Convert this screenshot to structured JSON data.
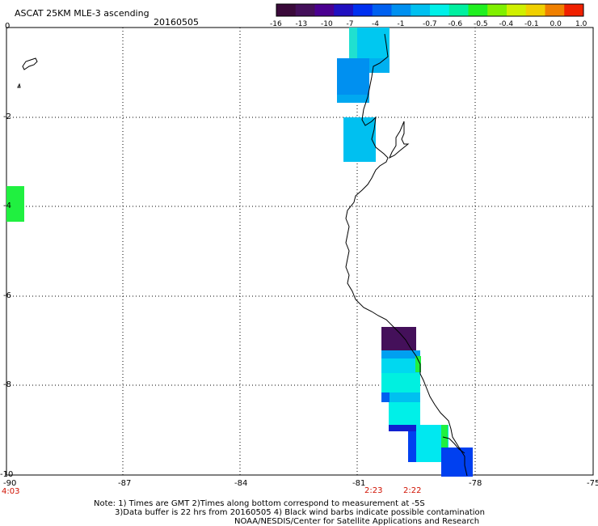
{
  "header": {
    "title": "ASCAT 25KM MLE-3 ascending",
    "date": "20160505"
  },
  "colorbar": {
    "colors": [
      "#3a0a3a",
      "#44105a",
      "#4a0090",
      "#2010c0",
      "#0030f0",
      "#0060f0",
      "#0090f0",
      "#00c0f0",
      "#00f0e8",
      "#00f0a0",
      "#20f020",
      "#80f000",
      "#d0f000",
      "#f0d000",
      "#f08000",
      "#f02000"
    ],
    "labels": [
      "-16",
      "-13",
      "-10",
      "-7",
      "-4",
      "-1",
      "-0.7",
      "-0.6",
      "-0.5",
      "-0.4",
      "-0.1",
      "0.0",
      "1.0"
    ]
  },
  "axes": {
    "y_labels": [
      "0",
      "-2",
      "-4",
      "-6",
      "-8",
      "-10"
    ],
    "x_labels": [
      "-90",
      "-87",
      "-84",
      "-81",
      "-78",
      "-75"
    ]
  },
  "times": {
    "left": "4:03",
    "t1": "2:23",
    "t2": "2:22"
  },
  "notes": {
    "line1": "Note: 1) Times are GMT 2)Times along bottom correspond to measurement at -5S",
    "line2": "3)Data buffer is 22 hrs from 20160505 4) Black wind barbs indicate possible contamination",
    "line3": "NOAA/NESDIS/Center for Satellite Applications and Research"
  }
}
